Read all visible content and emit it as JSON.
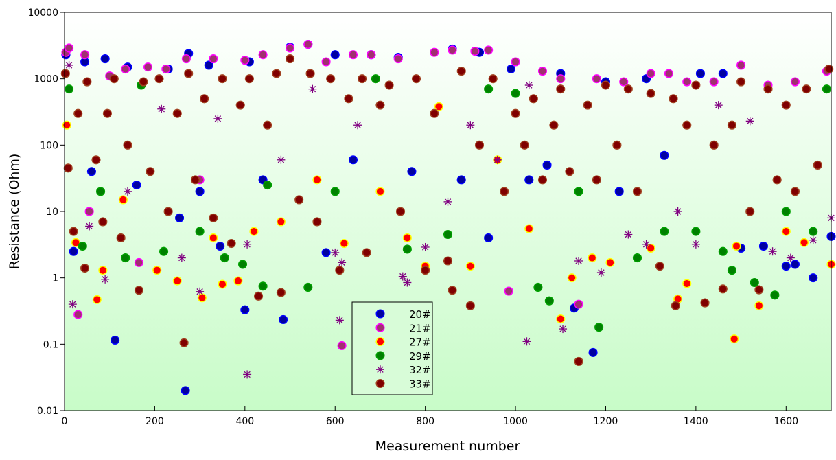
{
  "chart_data": {
    "type": "scatter",
    "title": "",
    "xlabel": "Measurement number",
    "ylabel": "Resistance (Ohm)",
    "xlim": [
      0,
      1700
    ],
    "ylim": [
      0.01,
      10000
    ],
    "yscale": "log",
    "xticks": [
      0,
      200,
      400,
      600,
      800,
      1000,
      1200,
      1400,
      1600
    ],
    "yticks": [
      0.01,
      0.1,
      1,
      10,
      100,
      1000,
      10000
    ],
    "ytick_labels": [
      "0.01",
      "0.1",
      "1",
      "10",
      "100",
      "1000",
      "10000"
    ],
    "legend_position": "bottom-center",
    "series": [
      {
        "name": "20#",
        "marker": "circle",
        "fill": "#0000a0",
        "edge": "#0000ff",
        "points": [
          [
            3,
            2300
          ],
          [
            20,
            2.5
          ],
          [
            45,
            1800
          ],
          [
            60,
            40
          ],
          [
            90,
            2000
          ],
          [
            112,
            0.115
          ],
          [
            140,
            1500
          ],
          [
            160,
            25
          ],
          [
            230,
            1400
          ],
          [
            255,
            8
          ],
          [
            268,
            0.02
          ],
          [
            275,
            2400
          ],
          [
            300,
            20
          ],
          [
            320,
            1600
          ],
          [
            345,
            3
          ],
          [
            400,
            0.33
          ],
          [
            410,
            1800
          ],
          [
            440,
            30
          ],
          [
            485,
            0.235
          ],
          [
            500,
            3000
          ],
          [
            540,
            3300
          ],
          [
            580,
            2.4
          ],
          [
            600,
            2300
          ],
          [
            640,
            60
          ],
          [
            680,
            2300
          ],
          [
            740,
            2100
          ],
          [
            770,
            40
          ],
          [
            860,
            2800
          ],
          [
            880,
            30
          ],
          [
            920,
            2500
          ],
          [
            940,
            4
          ],
          [
            990,
            1400
          ],
          [
            1030,
            30
          ],
          [
            1070,
            50
          ],
          [
            1100,
            1200
          ],
          [
            1130,
            0.35
          ],
          [
            1172,
            0.075
          ],
          [
            1200,
            900
          ],
          [
            1230,
            20
          ],
          [
            1290,
            1000
          ],
          [
            1330,
            70
          ],
          [
            1410,
            1200
          ],
          [
            1460,
            1200
          ],
          [
            1500,
            2.8
          ],
          [
            1550,
            3
          ],
          [
            1600,
            1.5
          ],
          [
            1620,
            1.6
          ],
          [
            1660,
            1
          ],
          [
            1700,
            4.2
          ]
        ]
      },
      {
        "name": "21#",
        "marker": "circle",
        "fill": "#a03070",
        "edge": "#ff00ff",
        "points": [
          [
            3,
            2500
          ],
          [
            10,
            2900
          ],
          [
            30,
            0.28
          ],
          [
            45,
            2300
          ],
          [
            55,
            10
          ],
          [
            100,
            1100
          ],
          [
            135,
            1400
          ],
          [
            165,
            1.7
          ],
          [
            185,
            1500
          ],
          [
            225,
            1400
          ],
          [
            270,
            2000
          ],
          [
            300,
            30
          ],
          [
            330,
            2000
          ],
          [
            400,
            1900
          ],
          [
            440,
            2300
          ],
          [
            500,
            2900
          ],
          [
            540,
            3300
          ],
          [
            580,
            1800
          ],
          [
            615,
            0.095
          ],
          [
            640,
            2300
          ],
          [
            680,
            2300
          ],
          [
            740,
            2000
          ],
          [
            820,
            2500
          ],
          [
            860,
            2700
          ],
          [
            910,
            2600
          ],
          [
            940,
            2700
          ],
          [
            985,
            0.63
          ],
          [
            1000,
            1800
          ],
          [
            1060,
            1300
          ],
          [
            1100,
            1000
          ],
          [
            1140,
            0.4
          ],
          [
            1180,
            1000
          ],
          [
            1240,
            900
          ],
          [
            1300,
            1200
          ],
          [
            1340,
            1200
          ],
          [
            1380,
            900
          ],
          [
            1440,
            900
          ],
          [
            1500,
            1600
          ],
          [
            1560,
            800
          ],
          [
            1620,
            900
          ],
          [
            1690,
            1300
          ]
        ]
      },
      {
        "name": "27#",
        "marker": "circle",
        "fill": "#ff0000",
        "edge": "#ffff00",
        "points": [
          [
            5,
            200
          ],
          [
            25,
            3.4
          ],
          [
            72,
            0.47
          ],
          [
            85,
            1.3
          ],
          [
            130,
            15
          ],
          [
            205,
            1.3
          ],
          [
            250,
            0.9
          ],
          [
            305,
            0.5
          ],
          [
            330,
            4
          ],
          [
            350,
            0.8
          ],
          [
            385,
            0.9
          ],
          [
            420,
            5
          ],
          [
            480,
            7
          ],
          [
            560,
            30
          ],
          [
            620,
            3.3
          ],
          [
            700,
            20
          ],
          [
            760,
            4
          ],
          [
            800,
            1.5
          ],
          [
            830,
            380
          ],
          [
            900,
            1.5
          ],
          [
            960,
            60
          ],
          [
            1030,
            5.5
          ],
          [
            1100,
            0.24
          ],
          [
            1125,
            1
          ],
          [
            1170,
            2
          ],
          [
            1210,
            1.7
          ],
          [
            1300,
            2.8
          ],
          [
            1360,
            0.48
          ],
          [
            1380,
            0.82
          ],
          [
            1485,
            0.12
          ],
          [
            1490,
            3
          ],
          [
            1540,
            0.38
          ],
          [
            1600,
            5
          ],
          [
            1640,
            3.4
          ],
          [
            1700,
            1.6
          ]
        ]
      },
      {
        "name": "29#",
        "marker": "circle",
        "fill": "#008000",
        "edge": "#00a000",
        "points": [
          [
            10,
            700
          ],
          [
            40,
            3
          ],
          [
            80,
            20
          ],
          [
            135,
            2
          ],
          [
            170,
            800
          ],
          [
            220,
            2.5
          ],
          [
            300,
            5
          ],
          [
            355,
            2
          ],
          [
            395,
            1.6
          ],
          [
            440,
            0.75
          ],
          [
            450,
            25
          ],
          [
            540,
            0.72
          ],
          [
            600,
            20
          ],
          [
            690,
            1000
          ],
          [
            760,
            2.7
          ],
          [
            850,
            4.5
          ],
          [
            940,
            700
          ],
          [
            1000,
            600
          ],
          [
            1050,
            0.72
          ],
          [
            1075,
            0.45
          ],
          [
            1140,
            20
          ],
          [
            1185,
            0.18
          ],
          [
            1270,
            2
          ],
          [
            1330,
            5
          ],
          [
            1400,
            5
          ],
          [
            1460,
            2.5
          ],
          [
            1480,
            1.3
          ],
          [
            1530,
            0.85
          ],
          [
            1575,
            0.55
          ],
          [
            1600,
            10
          ],
          [
            1660,
            5
          ],
          [
            1690,
            700
          ]
        ]
      },
      {
        "name": "32#",
        "marker": "star",
        "fill": "#800080",
        "edge": "#800080",
        "points": [
          [
            10,
            1600
          ],
          [
            18,
            0.4
          ],
          [
            55,
            6
          ],
          [
            90,
            0.95
          ],
          [
            140,
            20
          ],
          [
            215,
            350
          ],
          [
            260,
            2
          ],
          [
            300,
            0.62
          ],
          [
            340,
            250
          ],
          [
            405,
            0.035
          ],
          [
            405,
            3.2
          ],
          [
            480,
            60
          ],
          [
            550,
            700
          ],
          [
            600,
            2.4
          ],
          [
            610,
            0.23
          ],
          [
            615,
            1.7
          ],
          [
            650,
            200
          ],
          [
            750,
            1.05
          ],
          [
            760,
            0.85
          ],
          [
            800,
            2.9
          ],
          [
            850,
            14
          ],
          [
            900,
            200
          ],
          [
            960,
            60
          ],
          [
            1025,
            0.11
          ],
          [
            1030,
            800
          ],
          [
            1105,
            0.17
          ],
          [
            1140,
            1.8
          ],
          [
            1190,
            1.2
          ],
          [
            1250,
            4.5
          ],
          [
            1290,
            3.2
          ],
          [
            1360,
            10
          ],
          [
            1400,
            3.2
          ],
          [
            1450,
            400
          ],
          [
            1520,
            230
          ],
          [
            1570,
            2.5
          ],
          [
            1610,
            2
          ],
          [
            1660,
            3.7
          ],
          [
            1700,
            8
          ]
        ]
      },
      {
        "name": "33#",
        "marker": "circle",
        "fill": "#800000",
        "edge": "#a04020",
        "points": [
          [
            2,
            1200
          ],
          [
            8,
            45
          ],
          [
            20,
            5
          ],
          [
            30,
            300
          ],
          [
            45,
            1.4
          ],
          [
            50,
            900
          ],
          [
            70,
            60
          ],
          [
            85,
            7
          ],
          [
            95,
            300
          ],
          [
            110,
            1000
          ],
          [
            125,
            4
          ],
          [
            140,
            100
          ],
          [
            165,
            0.65
          ],
          [
            175,
            900
          ],
          [
            190,
            40
          ],
          [
            210,
            1000
          ],
          [
            230,
            10
          ],
          [
            250,
            300
          ],
          [
            265,
            0.105
          ],
          [
            275,
            1200
          ],
          [
            290,
            30
          ],
          [
            310,
            500
          ],
          [
            330,
            8
          ],
          [
            350,
            1000
          ],
          [
            370,
            3.3
          ],
          [
            390,
            400
          ],
          [
            410,
            1000
          ],
          [
            430,
            0.53
          ],
          [
            450,
            200
          ],
          [
            470,
            1200
          ],
          [
            480,
            0.6
          ],
          [
            500,
            2000
          ],
          [
            520,
            15
          ],
          [
            545,
            1200
          ],
          [
            560,
            7
          ],
          [
            590,
            1000
          ],
          [
            610,
            1.3
          ],
          [
            630,
            500
          ],
          [
            660,
            1000
          ],
          [
            670,
            2.4
          ],
          [
            700,
            400
          ],
          [
            720,
            800
          ],
          [
            745,
            10
          ],
          [
            780,
            1000
          ],
          [
            800,
            1.3
          ],
          [
            820,
            300
          ],
          [
            850,
            1.8
          ],
          [
            860,
            0.65
          ],
          [
            880,
            1300
          ],
          [
            900,
            0.38
          ],
          [
            920,
            100
          ],
          [
            950,
            1000
          ],
          [
            975,
            20
          ],
          [
            1000,
            300
          ],
          [
            1020,
            100
          ],
          [
            1040,
            500
          ],
          [
            1060,
            30
          ],
          [
            1085,
            200
          ],
          [
            1100,
            700
          ],
          [
            1120,
            40
          ],
          [
            1140,
            0.055
          ],
          [
            1160,
            400
          ],
          [
            1180,
            30
          ],
          [
            1200,
            800
          ],
          [
            1225,
            100
          ],
          [
            1250,
            700
          ],
          [
            1270,
            20
          ],
          [
            1300,
            600
          ],
          [
            1320,
            1.5
          ],
          [
            1350,
            500
          ],
          [
            1355,
            0.38
          ],
          [
            1380,
            200
          ],
          [
            1400,
            800
          ],
          [
            1420,
            0.42
          ],
          [
            1440,
            100
          ],
          [
            1460,
            0.68
          ],
          [
            1480,
            200
          ],
          [
            1500,
            900
          ],
          [
            1520,
            10
          ],
          [
            1540,
            0.66
          ],
          [
            1560,
            700
          ],
          [
            1580,
            30
          ],
          [
            1600,
            400
          ],
          [
            1620,
            20
          ],
          [
            1645,
            700
          ],
          [
            1670,
            50
          ],
          [
            1695,
            1400
          ]
        ]
      }
    ]
  }
}
